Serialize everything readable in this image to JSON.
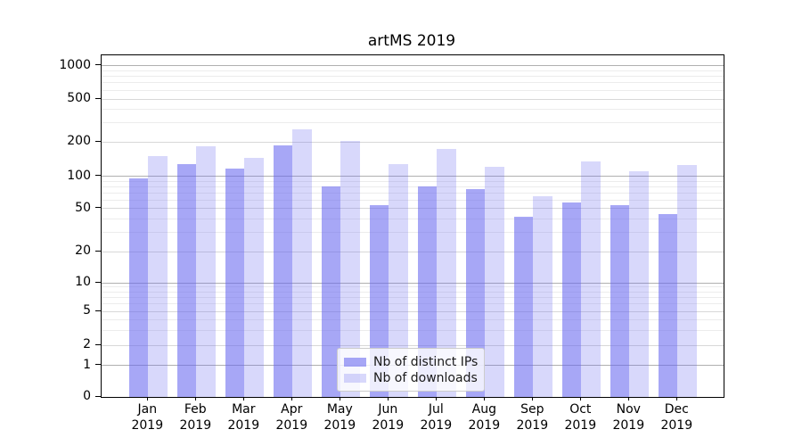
{
  "chart_data": {
    "type": "bar",
    "title": "artMS 2019",
    "categories": [
      "Jan",
      "Feb",
      "Mar",
      "Apr",
      "May",
      "Jun",
      "Jul",
      "Aug",
      "Sep",
      "Oct",
      "Nov",
      "Dec"
    ],
    "category_year": "2019",
    "series": [
      {
        "name": "Nb of distinct IPs",
        "values": [
          96,
          127,
          116,
          188,
          80,
          54,
          80,
          76,
          42,
          57,
          54,
          44
        ],
        "color": {
          "hex": "#6464f0",
          "alpha": 0.57
        }
      },
      {
        "name": "Nb of downloads",
        "values": [
          152,
          184,
          146,
          264,
          206,
          128,
          175,
          121,
          65,
          135,
          111,
          126
        ],
        "color": {
          "hex": "#6464f0",
          "alpha": 0.25
        }
      }
    ],
    "xlabel": "",
    "ylabel": "",
    "yscale": "symlog",
    "ylim": [
      0,
      1240
    ],
    "yticks": [
      0,
      1,
      2,
      5,
      10,
      20,
      50,
      100,
      200,
      500,
      1000
    ],
    "ytick_labels": [
      "0",
      "1",
      "2",
      "5",
      "10",
      "20",
      "50",
      "100",
      "200",
      "500",
      "1000"
    ],
    "major_gridlines": [
      1,
      10,
      100,
      1000
    ],
    "labeled_minor_gridlines": [
      2,
      5,
      20,
      50,
      200,
      500
    ],
    "unlabeled_minor_gridlines": [
      3,
      4,
      6,
      7,
      8,
      9,
      30,
      40,
      60,
      70,
      80,
      90,
      300,
      400,
      600,
      700,
      800,
      900
    ],
    "grid": true,
    "legend": {
      "location": "lower center",
      "inside_plot": true
    }
  },
  "colors": {
    "background": "#ffffff",
    "grid_major": "#b0b0b0",
    "grid_labeled_minor": "#d8d8d8",
    "grid_unlabeled_minor": "#ececec",
    "axis": "#000000",
    "text": "#000000",
    "legend_border": "#cccccc"
  }
}
